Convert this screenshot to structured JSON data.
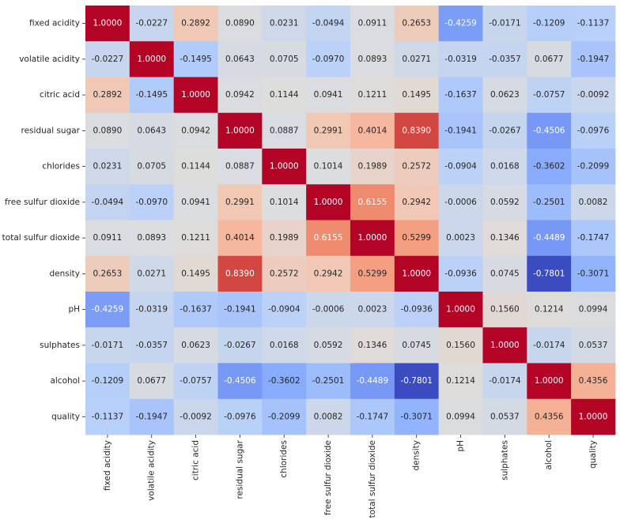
{
  "chart_data": {
    "type": "heatmap",
    "colormap": "coolwarm",
    "value_range": [
      -0.7801,
      1.0
    ],
    "labels": [
      "fixed acidity",
      "volatile acidity",
      "citric acid",
      "residual sugar",
      "chlorides",
      "free sulfur dioxide",
      "total sulfur dioxide",
      "density",
      "pH",
      "sulphates",
      "alcohol",
      "quality"
    ],
    "values": [
      [
        1.0,
        -0.0227,
        0.2892,
        0.089,
        0.0231,
        -0.0494,
        0.0911,
        0.2653,
        -0.4259,
        -0.0171,
        -0.1209,
        -0.1137
      ],
      [
        -0.0227,
        1.0,
        -0.1495,
        0.0643,
        0.0705,
        -0.097,
        0.0893,
        0.0271,
        -0.0319,
        -0.0357,
        0.0677,
        -0.1947
      ],
      [
        0.2892,
        -0.1495,
        1.0,
        0.0942,
        0.1144,
        0.0941,
        0.1211,
        0.1495,
        -0.1637,
        0.0623,
        -0.0757,
        -0.0092
      ],
      [
        0.089,
        0.0643,
        0.0942,
        1.0,
        0.0887,
        0.2991,
        0.4014,
        0.839,
        -0.1941,
        -0.0267,
        -0.4506,
        -0.0976
      ],
      [
        0.0231,
        0.0705,
        0.1144,
        0.0887,
        1.0,
        0.1014,
        0.1989,
        0.2572,
        -0.0904,
        0.0168,
        -0.3602,
        -0.2099
      ],
      [
        -0.0494,
        -0.097,
        0.0941,
        0.2991,
        0.1014,
        1.0,
        0.6155,
        0.2942,
        -0.0006,
        0.0592,
        -0.2501,
        0.0082
      ],
      [
        0.0911,
        0.0893,
        0.1211,
        0.4014,
        0.1989,
        0.6155,
        1.0,
        0.5299,
        0.0023,
        0.1346,
        -0.4489,
        -0.1747
      ],
      [
        0.2653,
        0.0271,
        0.1495,
        0.839,
        0.2572,
        0.2942,
        0.5299,
        1.0,
        -0.0936,
        0.0745,
        -0.7801,
        -0.3071
      ],
      [
        -0.4259,
        -0.0319,
        -0.1637,
        -0.1941,
        -0.0904,
        -0.0006,
        0.0023,
        -0.0936,
        1.0,
        0.156,
        0.1214,
        0.0994
      ],
      [
        -0.0171,
        -0.0357,
        0.0623,
        -0.0267,
        0.0168,
        0.0592,
        0.1346,
        0.0745,
        0.156,
        1.0,
        -0.0174,
        0.0537
      ],
      [
        -0.1209,
        0.0677,
        -0.0757,
        -0.4506,
        -0.3602,
        -0.2501,
        -0.4489,
        -0.7801,
        0.1214,
        -0.0174,
        1.0,
        0.4356
      ],
      [
        -0.1137,
        -0.1947,
        -0.0092,
        -0.0976,
        -0.2099,
        0.0082,
        -0.1747,
        -0.3071,
        0.0994,
        0.0537,
        0.4356,
        1.0
      ]
    ],
    "value_format": "4 decimals",
    "colorbar": false,
    "title": "",
    "xlabel": "",
    "ylabel": ""
  }
}
